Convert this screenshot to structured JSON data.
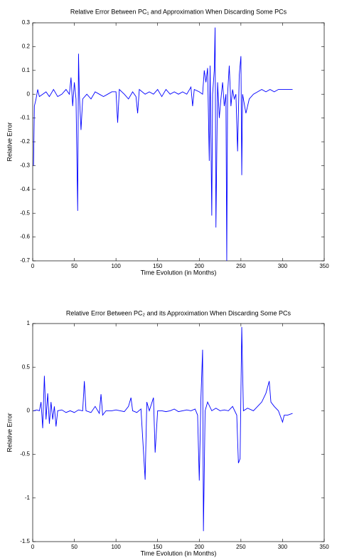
{
  "chart_data": [
    {
      "type": "line",
      "title": "Relative Error Between PC₁ and Approximation When Discarding Some PCs",
      "xlabel": "Time Evolution (in Months)",
      "ylabel": "Relative Error",
      "xlim": [
        0,
        350
      ],
      "xticks": [
        0,
        50,
        100,
        150,
        200,
        250,
        300,
        350
      ],
      "ylim": [
        -0.7,
        0.3
      ],
      "yticks": [
        -0.7,
        -0.6,
        -0.5,
        -0.4,
        -0.3,
        -0.2,
        -0.1,
        0,
        0.1,
        0.2,
        0.3
      ],
      "series": [
        {
          "color": "#0000ff",
          "x": [
            1,
            2,
            4,
            6,
            8,
            12,
            16,
            20,
            25,
            30,
            35,
            40,
            44,
            46,
            48,
            50,
            52,
            54,
            55,
            56,
            58,
            60,
            65,
            70,
            75,
            80,
            85,
            90,
            95,
            100,
            102,
            104,
            110,
            115,
            120,
            124,
            126,
            128,
            135,
            140,
            145,
            150,
            155,
            160,
            165,
            170,
            175,
            180,
            185,
            190,
            192,
            194,
            200,
            204,
            206,
            208,
            210,
            212,
            213,
            215,
            216,
            218,
            219,
            220,
            222,
            224,
            226,
            228,
            230,
            232,
            233,
            234,
            236,
            238,
            240,
            242,
            244,
            246,
            248,
            250,
            251,
            252,
            256,
            260,
            265,
            270,
            275,
            280,
            285,
            290,
            295,
            300,
            305,
            312
          ],
          "values": [
            -0.3,
            -0.05,
            -0.02,
            0.02,
            -0.01,
            0,
            0.01,
            -0.01,
            0.02,
            -0.01,
            0,
            0.02,
            0,
            0.07,
            -0.05,
            0.05,
            -0.02,
            -0.49,
            0.17,
            0,
            -0.15,
            -0.02,
            0,
            -0.02,
            0.01,
            0,
            -0.01,
            0,
            0.01,
            0.01,
            -0.12,
            0.02,
            0,
            -0.02,
            0.01,
            -0.01,
            -0.08,
            0.02,
            0,
            0.01,
            0,
            0.02,
            -0.01,
            0.02,
            0,
            0.01,
            0,
            0.01,
            0,
            0.03,
            -0.05,
            0.02,
            0.01,
            0,
            0.1,
            0.05,
            0.11,
            -0.28,
            0.12,
            -0.51,
            0,
            0.1,
            0.28,
            -0.56,
            0.05,
            -0.1,
            -0.02,
            0.05,
            -0.05,
            0,
            -0.7,
            0,
            0.12,
            -0.05,
            0.02,
            -0.02,
            0,
            -0.24,
            0.08,
            0.16,
            -0.34,
            0,
            -0.08,
            -0.02,
            0,
            0.01,
            0.02,
            0.01,
            0.02,
            0.01,
            0.02,
            0.02,
            0.02,
            0.02
          ]
        }
      ]
    },
    {
      "type": "line",
      "title": "Relative Error Between PC₂ and its Approximation When Discarding Some PCs",
      "xlabel": "Time Evolution (in Months)",
      "ylabel": "Relative Error",
      "xlim": [
        0,
        350
      ],
      "xticks": [
        0,
        50,
        100,
        150,
        200,
        250,
        300,
        350
      ],
      "ylim": [
        -1.5,
        1
      ],
      "yticks": [
        -1.5,
        -1,
        -0.5,
        0,
        0.5,
        1
      ],
      "series": [
        {
          "color": "#0000ff",
          "x": [
            1,
            5,
            8,
            10,
            12,
            14,
            16,
            18,
            20,
            22,
            24,
            26,
            28,
            30,
            35,
            40,
            45,
            50,
            55,
            60,
            62,
            64,
            70,
            75,
            80,
            82,
            84,
            88,
            95,
            100,
            105,
            110,
            115,
            118,
            120,
            125,
            130,
            135,
            137,
            140,
            145,
            147,
            150,
            155,
            160,
            165,
            170,
            175,
            180,
            185,
            190,
            195,
            198,
            200,
            202,
            204,
            205,
            207,
            210,
            215,
            220,
            225,
            230,
            235,
            240,
            245,
            247,
            249,
            251,
            253,
            258,
            265,
            270,
            275,
            280,
            284,
            286,
            290,
            295,
            300,
            302,
            306,
            312
          ],
          "values": [
            0,
            0.01,
            0,
            0.1,
            -0.2,
            0.4,
            -0.1,
            0.2,
            -0.15,
            0.1,
            -0.1,
            0.05,
            -0.18,
            0,
            0.01,
            -0.02,
            0,
            -0.02,
            0.01,
            0,
            0.34,
            0,
            -0.02,
            0.05,
            -0.03,
            0.19,
            -0.05,
            0,
            0,
            0.01,
            0,
            -0.01,
            0.05,
            0.15,
            0,
            -0.02,
            0.02,
            -0.79,
            0.1,
            0,
            0.15,
            -0.48,
            0,
            0,
            -0.01,
            0,
            0.02,
            -0.01,
            0,
            0.01,
            0,
            0.02,
            -0.05,
            -0.8,
            0.15,
            0.7,
            -1.38,
            0,
            0.1,
            0,
            0.03,
            0,
            0.01,
            0,
            0.05,
            -0.05,
            -0.6,
            -0.55,
            0.96,
            0,
            0.03,
            0,
            0.05,
            0.1,
            0.2,
            0.34,
            0.1,
            0.05,
            0,
            -0.13,
            -0.05,
            -0.05,
            -0.03
          ]
        }
      ]
    }
  ]
}
